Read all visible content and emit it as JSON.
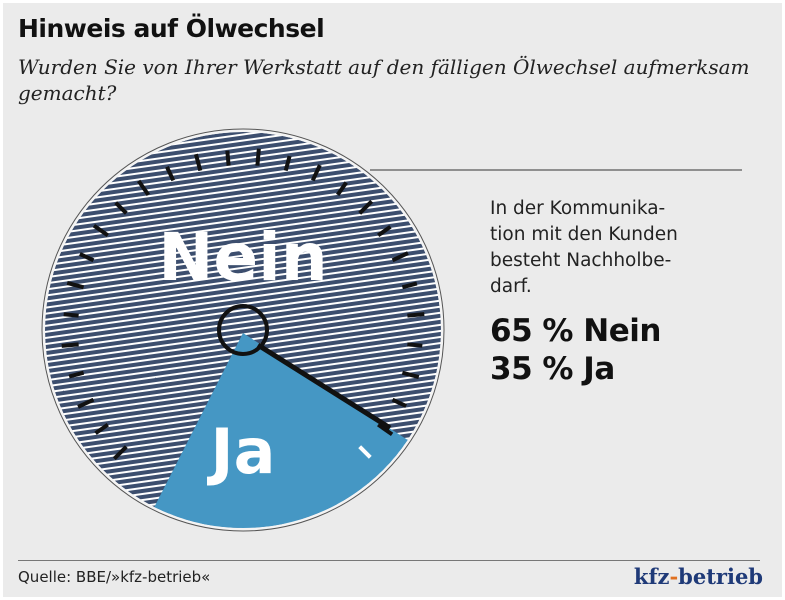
{
  "title": "Hinweis auf Ölwechsel",
  "subtitle": "Wurden Sie von Ihrer Werkstatt auf den fälligen Ölwechsel aufmerksam gemacht?",
  "note_lines": [
    "In der Kommunika-",
    "tion mit den Kunden",
    "besteht Nachholbe-",
    "darf."
  ],
  "chart_data": {
    "type": "pie",
    "style": "gauge",
    "categories": [
      "Nein",
      "Ja"
    ],
    "values": [
      65,
      35
    ],
    "unit": "%",
    "labels": [
      "Nein",
      "Ja"
    ],
    "stats": [
      "65 % Nein",
      "35 % Ja"
    ],
    "colors": {
      "Nein": "#3c4e6e",
      "Ja": "#4597c4"
    }
  },
  "source": "Quelle: BBE/»kfz-betrieb«",
  "logo": {
    "part1": "kfz",
    "dash": "-",
    "part2": "betrieb"
  }
}
